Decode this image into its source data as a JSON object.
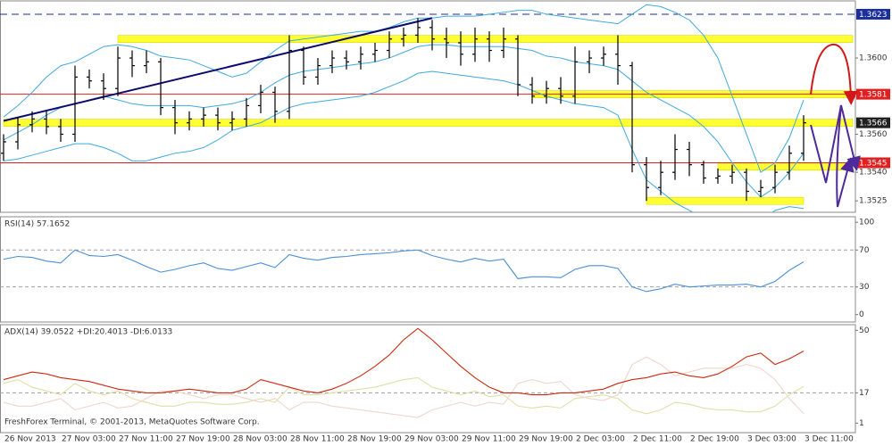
{
  "footer": "FreshForex Terminal, © 2001-2013, MetaQuotes Software Corp.",
  "chart_data": [
    {
      "type": "ohlc",
      "color": "#000000",
      "ylim": [
        1.3519,
        1.363
      ],
      "yticks": [
        1.3525,
        {
          "value": 1.354,
          "label": "1.3540"
        },
        {
          "value": 1.356,
          "label": "1.3560"
        },
        {
          "value": 1.36,
          "label": "1.3600"
        }
      ],
      "open": [
        1.355,
        1.3556,
        1.3565,
        1.3568,
        1.3564,
        1.356,
        1.359,
        1.3588,
        1.3584,
        1.36,
        1.3596,
        1.3598,
        1.3574,
        1.3566,
        1.3568,
        1.357,
        1.3566,
        1.3568,
        1.3575,
        1.3582,
        1.3572,
        1.3604,
        1.359,
        1.3596,
        1.36,
        1.3598,
        1.3602,
        1.3604,
        1.361,
        1.3612,
        1.3616,
        1.361,
        1.3608,
        1.3602,
        1.361,
        1.3604,
        1.361,
        1.3586,
        1.358,
        1.3584,
        1.358,
        1.3598,
        1.36,
        1.3602,
        1.3596,
        1.3544,
        1.3532,
        1.354,
        1.3552,
        1.3544,
        1.3537,
        1.3538,
        1.354,
        1.353,
        1.3532,
        1.354,
        1.355
      ],
      "high": [
        1.356,
        1.3569,
        1.3572,
        1.3572,
        1.3568,
        1.3596,
        1.3594,
        1.3592,
        1.3606,
        1.3604,
        1.3604,
        1.36,
        1.3578,
        1.3572,
        1.3574,
        1.3574,
        1.3572,
        1.3579,
        1.3586,
        1.3585,
        1.3612,
        1.3606,
        1.36,
        1.3604,
        1.3604,
        1.3606,
        1.3608,
        1.3614,
        1.3616,
        1.3621,
        1.362,
        1.3616,
        1.3614,
        1.3616,
        1.3614,
        1.3616,
        1.3612,
        1.359,
        1.3588,
        1.359,
        1.3606,
        1.3604,
        1.3606,
        1.3612,
        1.3598,
        1.3548,
        1.3546,
        1.356,
        1.3556,
        1.3546,
        1.3542,
        1.3544,
        1.3542,
        1.3536,
        1.3544,
        1.3554,
        1.357
      ],
      "low": [
        1.3546,
        1.3552,
        1.3561,
        1.356,
        1.3556,
        1.3556,
        1.3584,
        1.3578,
        1.358,
        1.359,
        1.3592,
        1.357,
        1.356,
        1.3562,
        1.3564,
        1.3562,
        1.3562,
        1.3564,
        1.3571,
        1.3566,
        1.3568,
        1.3586,
        1.3586,
        1.3592,
        1.3594,
        1.3594,
        1.3598,
        1.36,
        1.3606,
        1.3608,
        1.3604,
        1.36,
        1.3596,
        1.3598,
        1.3598,
        1.36,
        1.358,
        1.3576,
        1.3576,
        1.3576,
        1.3576,
        1.3592,
        1.3596,
        1.3586,
        1.354,
        1.3525,
        1.3528,
        1.3536,
        1.3538,
        1.3534,
        1.3534,
        1.3534,
        1.3525,
        1.3527,
        1.3529,
        1.3536,
        1.3546
      ],
      "close": [
        1.3556,
        1.3565,
        1.3568,
        1.3564,
        1.356,
        1.359,
        1.3588,
        1.3584,
        1.36,
        1.3596,
        1.3598,
        1.3574,
        1.3566,
        1.3568,
        1.357,
        1.3566,
        1.3568,
        1.3575,
        1.3582,
        1.3572,
        1.3604,
        1.359,
        1.3596,
        1.36,
        1.3598,
        1.3602,
        1.3604,
        1.361,
        1.3612,
        1.3616,
        1.361,
        1.3608,
        1.3602,
        1.361,
        1.3604,
        1.361,
        1.3586,
        1.358,
        1.3584,
        1.358,
        1.3598,
        1.36,
        1.3602,
        1.3596,
        1.3544,
        1.3532,
        1.354,
        1.3552,
        1.3544,
        1.3537,
        1.3538,
        1.354,
        1.353,
        1.3532,
        1.354,
        1.355,
        1.3566
      ],
      "bands": [
        {
          "color": "#3fa9dd",
          "values": [
            1.3569,
            1.3575,
            1.3582,
            1.359,
            1.3596,
            1.3598,
            1.3602,
            1.3606,
            1.3607,
            1.3606,
            1.3604,
            1.3601,
            1.36,
            1.3599,
            1.3596,
            1.3593,
            1.359,
            1.3592,
            1.3598,
            1.3604,
            1.3609,
            1.361,
            1.3611,
            1.3612,
            1.3613,
            1.3614,
            1.3614,
            1.3616,
            1.3619,
            1.3621,
            1.3621,
            1.3622,
            1.3622,
            1.3622,
            1.3623,
            1.3624,
            1.3625,
            1.3625,
            1.3623,
            1.3622,
            1.3621,
            1.362,
            1.3619,
            1.3618,
            1.3623,
            1.3628,
            1.3627,
            1.3624,
            1.362,
            1.3612,
            1.36,
            1.358,
            1.356,
            1.354,
            1.3545,
            1.3558,
            1.3578
          ]
        },
        {
          "color": "#3fa9dd",
          "values": [
            1.3557,
            1.3561,
            1.3565,
            1.357,
            1.3574,
            1.3576,
            1.3578,
            1.358,
            1.3578,
            1.3576,
            1.3575,
            1.3575,
            1.3575,
            1.3575,
            1.3574,
            1.3575,
            1.3576,
            1.3578,
            1.3582,
            1.3587,
            1.3591,
            1.3593,
            1.3594,
            1.3595,
            1.3596,
            1.3597,
            1.3598,
            1.36,
            1.3603,
            1.3606,
            1.3607,
            1.3607,
            1.3606,
            1.3606,
            1.3606,
            1.3606,
            1.3605,
            1.3604,
            1.3601,
            1.36,
            1.3598,
            1.3597,
            1.3596,
            1.3594,
            1.3588,
            1.3582,
            1.3578,
            1.3574,
            1.357,
            1.3564,
            1.3556,
            1.3545,
            1.3535,
            1.3527,
            1.3532,
            1.354,
            1.355
          ]
        },
        {
          "color": "#3fa9dd",
          "values": [
            1.3546,
            1.3547,
            1.3549,
            1.3551,
            1.3553,
            1.3555,
            1.3555,
            1.3553,
            1.355,
            1.3546,
            1.3546,
            1.3548,
            1.355,
            1.3551,
            1.3553,
            1.3557,
            1.3562,
            1.3564,
            1.3566,
            1.357,
            1.3574,
            1.3576,
            1.3577,
            1.3578,
            1.3579,
            1.358,
            1.3582,
            1.3585,
            1.3588,
            1.3592,
            1.3593,
            1.3592,
            1.3591,
            1.359,
            1.3589,
            1.3588,
            1.3586,
            1.3583,
            1.358,
            1.3578,
            1.3576,
            1.3575,
            1.3574,
            1.357,
            1.3552,
            1.3536,
            1.353,
            1.3524,
            1.352,
            1.3516,
            1.3512,
            1.351,
            1.351,
            1.3514,
            1.352,
            1.3522,
            1.3521
          ]
        }
      ],
      "zone_color": "#ffff33",
      "zones": [
        {
          "value": 1.361,
          "from": 8
        },
        {
          "value": 1.3566,
          "from": 0
        },
        {
          "value": 1.3581,
          "from": 37
        },
        {
          "value": 1.3543,
          "from": 50
        },
        {
          "value": 1.3525,
          "from": 45,
          "to": 56
        }
      ],
      "trend_line": {
        "color": "#0b0b6e",
        "from": [
          0,
          1.3567
        ],
        "to": [
          30,
          1.3621
        ]
      },
      "price_labels": [
        {
          "value": 1.3623,
          "color": "#1a2f9a",
          "line": "dashed"
        },
        {
          "value": 1.3581,
          "color": "#e02020",
          "line": "solid"
        },
        {
          "value": 1.3566,
          "color": "#202020"
        },
        {
          "value": 1.3545,
          "color": "#e02020",
          "line": "solid"
        }
      ]
    },
    {
      "type": "line",
      "title": "RSI(14) 57.1652",
      "ylim": [
        -8,
        106
      ],
      "yticks": [
        0,
        30,
        70,
        100
      ],
      "levels": [
        30,
        70
      ],
      "series": [
        {
          "color": "#4b8fd4",
          "values": [
            60,
            63,
            62,
            58,
            56,
            70,
            64,
            63,
            65,
            59,
            52,
            46,
            49,
            53,
            56,
            50,
            48,
            52,
            56,
            51,
            65,
            61,
            59,
            62,
            63,
            65,
            66,
            67,
            69,
            70,
            64,
            60,
            57,
            61,
            58,
            60,
            39,
            41,
            41,
            40,
            49,
            53,
            53,
            50,
            30,
            25,
            28,
            33,
            30,
            31,
            32,
            32,
            33,
            30,
            36,
            48,
            57.1652
          ]
        }
      ]
    },
    {
      "type": "line",
      "title": "ADX(14) 39.0522 +DI:20.4013 -DI:6.0133",
      "ylim": [
        -4,
        53
      ],
      "yticks": [
        1,
        17,
        50
      ],
      "levels": [
        17
      ],
      "categories": [
        "26 Nov 2013",
        null,
        null,
        null,
        "27 Nov 03:00",
        null,
        null,
        null,
        "27 Nov 11:00",
        null,
        null,
        null,
        "27 Nov 19:00",
        null,
        null,
        null,
        "28 Nov 03:00",
        null,
        null,
        null,
        "28 Nov 11:00",
        null,
        null,
        null,
        "28 Nov 19:00",
        null,
        null,
        null,
        "29 Nov 03:00",
        null,
        null,
        null,
        "29 Nov 11:00",
        null,
        null,
        null,
        "29 Nov 19:00",
        null,
        null,
        null,
        "2 Dec 03:00",
        null,
        null,
        null,
        "2 Dec 11:00",
        null,
        null,
        null,
        "2 Dec 19:00",
        null,
        null,
        null,
        "3 Dec 03:00",
        null,
        null,
        null,
        "3 Dec 11:00"
      ],
      "series": [
        {
          "color": "#dfe0a8",
          "values": [
            22,
            24,
            20,
            18,
            16,
            22,
            18,
            16,
            18,
            14,
            12,
            10,
            10,
            12,
            12,
            11,
            11,
            12,
            14,
            12,
            20,
            16,
            16,
            17,
            18,
            19,
            20,
            22,
            24,
            25,
            20,
            18,
            16,
            18,
            15,
            16,
            10,
            9,
            10,
            9,
            14,
            15,
            16,
            14,
            8,
            6,
            8,
            12,
            11,
            9,
            8,
            8,
            7,
            7,
            10,
            16,
            20.4013
          ]
        },
        {
          "color": "#f0d6cc",
          "values": [
            12,
            10,
            10,
            12,
            14,
            8,
            10,
            12,
            9,
            10,
            14,
            18,
            18,
            16,
            14,
            16,
            16,
            14,
            12,
            14,
            8,
            12,
            12,
            10,
            9,
            8,
            7,
            6,
            5,
            4,
            8,
            10,
            12,
            10,
            12,
            11,
            22,
            24,
            22,
            23,
            16,
            14,
            13,
            16,
            32,
            36,
            32,
            26,
            28,
            30,
            30,
            30,
            32,
            30,
            24,
            14,
            6.0133
          ]
        },
        {
          "color": "#cc2a10",
          "values": [
            24,
            26,
            28,
            27,
            25,
            24,
            23,
            21,
            19,
            18,
            17,
            17,
            18,
            19,
            18,
            17,
            17,
            19,
            24,
            22,
            20,
            18,
            17,
            19,
            22,
            26,
            31,
            37,
            45,
            51,
            45,
            38,
            31,
            25,
            20,
            17,
            17,
            16,
            16,
            17,
            17,
            18,
            19,
            22,
            24,
            25,
            27,
            28,
            26,
            25,
            27,
            31,
            36,
            38,
            32,
            35,
            39.0522
          ]
        }
      ]
    }
  ]
}
